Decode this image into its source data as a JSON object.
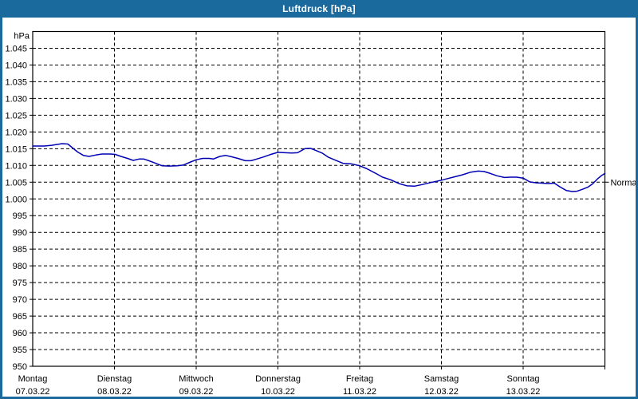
{
  "window": {
    "title": "Luftdruck [hPa]",
    "titlebar_color": "#1a6a9e",
    "border_color": "#1a6a9e"
  },
  "chart_data": {
    "type": "line",
    "title": "Luftdruck [hPa]",
    "unit_label": "hPa",
    "grid": true,
    "y_axis": {
      "min": 950,
      "max": 1050,
      "step": 5,
      "tick_labels": [
        "1.045",
        "1.040",
        "1.035",
        "1.030",
        "1.025",
        "1.020",
        "1.015",
        "1.010",
        "1.005",
        "1.000",
        "995",
        "990",
        "985",
        "980",
        "975",
        "970",
        "965",
        "960",
        "955",
        "950"
      ]
    },
    "x_axis": {
      "days": [
        {
          "name": "Montag",
          "date": "07.03.22"
        },
        {
          "name": "Dienstag",
          "date": "08.03.22"
        },
        {
          "name": "Mittwoch",
          "date": "09.03.22"
        },
        {
          "name": "Donnerstag",
          "date": "10.03.22"
        },
        {
          "name": "Freitag",
          "date": "11.03.22"
        },
        {
          "name": "Samstag",
          "date": "12.03.22"
        },
        {
          "name": "Sonntag",
          "date": "13.03.22"
        }
      ]
    },
    "normal_marker": {
      "label": "Normal",
      "value": 1005
    },
    "series": [
      {
        "name": "Luftdruck",
        "color": "#0000b4",
        "points": [
          [
            0.0,
            1015.8
          ],
          [
            0.14,
            1015.8
          ],
          [
            0.23,
            1016.0
          ],
          [
            0.36,
            1016.5
          ],
          [
            0.43,
            1016.4
          ],
          [
            0.49,
            1015.2
          ],
          [
            0.55,
            1014.0
          ],
          [
            0.62,
            1013.0
          ],
          [
            0.69,
            1012.7
          ],
          [
            0.77,
            1013.1
          ],
          [
            0.85,
            1013.4
          ],
          [
            0.95,
            1013.4
          ],
          [
            1.01,
            1013.3
          ],
          [
            1.08,
            1012.7
          ],
          [
            1.16,
            1012.1
          ],
          [
            1.23,
            1011.5
          ],
          [
            1.3,
            1011.9
          ],
          [
            1.36,
            1011.9
          ],
          [
            1.41,
            1011.5
          ],
          [
            1.5,
            1010.7
          ],
          [
            1.58,
            1009.9
          ],
          [
            1.67,
            1009.8
          ],
          [
            1.77,
            1009.9
          ],
          [
            1.84,
            1010.1
          ],
          [
            1.92,
            1010.9
          ],
          [
            2.0,
            1011.7
          ],
          [
            2.08,
            1012.1
          ],
          [
            2.16,
            1012.1
          ],
          [
            2.21,
            1011.9
          ],
          [
            2.29,
            1012.7
          ],
          [
            2.36,
            1013.0
          ],
          [
            2.43,
            1012.6
          ],
          [
            2.51,
            1012.1
          ],
          [
            2.6,
            1011.4
          ],
          [
            2.67,
            1011.4
          ],
          [
            2.74,
            1011.9
          ],
          [
            2.82,
            1012.5
          ],
          [
            2.9,
            1013.2
          ],
          [
            3.0,
            1013.9
          ],
          [
            3.09,
            1013.8
          ],
          [
            3.17,
            1013.7
          ],
          [
            3.24,
            1013.8
          ],
          [
            3.33,
            1015.0
          ],
          [
            3.4,
            1015.1
          ],
          [
            3.47,
            1014.4
          ],
          [
            3.54,
            1013.7
          ],
          [
            3.62,
            1012.4
          ],
          [
            3.72,
            1011.4
          ],
          [
            3.8,
            1010.6
          ],
          [
            3.89,
            1010.5
          ],
          [
            4.0,
            1009.9
          ],
          [
            4.09,
            1009.0
          ],
          [
            4.19,
            1007.7
          ],
          [
            4.28,
            1006.5
          ],
          [
            4.38,
            1005.7
          ],
          [
            4.48,
            1004.6
          ],
          [
            4.58,
            1003.9
          ],
          [
            4.67,
            1003.8
          ],
          [
            4.77,
            1004.3
          ],
          [
            4.87,
            1004.9
          ],
          [
            4.95,
            1005.3
          ],
          [
            5.0,
            1005.6
          ],
          [
            5.08,
            1006.1
          ],
          [
            5.16,
            1006.6
          ],
          [
            5.26,
            1007.2
          ],
          [
            5.36,
            1008.0
          ],
          [
            5.45,
            1008.3
          ],
          [
            5.52,
            1008.2
          ],
          [
            5.6,
            1007.6
          ],
          [
            5.68,
            1006.9
          ],
          [
            5.77,
            1006.4
          ],
          [
            5.84,
            1006.5
          ],
          [
            5.92,
            1006.5
          ],
          [
            6.0,
            1006.2
          ],
          [
            6.08,
            1005.1
          ],
          [
            6.16,
            1004.8
          ],
          [
            6.23,
            1004.7
          ],
          [
            6.31,
            1004.6
          ],
          [
            6.38,
            1004.7
          ],
          [
            6.45,
            1003.6
          ],
          [
            6.53,
            1002.5
          ],
          [
            6.6,
            1002.2
          ],
          [
            6.66,
            1002.3
          ],
          [
            6.73,
            1002.9
          ],
          [
            6.79,
            1003.5
          ],
          [
            6.85,
            1004.5
          ],
          [
            6.91,
            1006.0
          ],
          [
            6.96,
            1007.0
          ],
          [
            7.0,
            1007.6
          ]
        ]
      }
    ]
  }
}
